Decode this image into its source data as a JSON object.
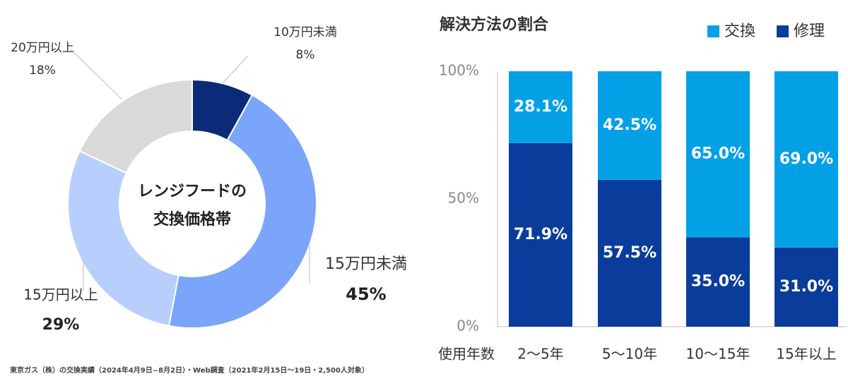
{
  "colors": {
    "lt10": "#0b2a78",
    "lt15": "#7aa5fb",
    "ge15": "#b8cffd",
    "ge20": "#d9d9d9",
    "exchange": "#04a0e6",
    "repair": "#0a3d9b",
    "text_dark": "#333333"
  },
  "chart_data": [
    {
      "type": "pie",
      "variant": "donut",
      "center_label": [
        "レンジフードの",
        "交換価格帯"
      ],
      "slices": [
        {
          "key": "lt10",
          "label": "10万円未満",
          "value_text": "8%",
          "value": 8
        },
        {
          "key": "lt15",
          "label": "15万円未満",
          "value_text": "45%",
          "value": 45
        },
        {
          "key": "ge15",
          "label": "15万円以上",
          "value_text": "29%",
          "value": 29
        },
        {
          "key": "ge20",
          "label": "20万円以上",
          "value_text": "18%",
          "value": 18
        }
      ]
    },
    {
      "type": "bar",
      "stacked": "percent",
      "title": "解決方法の割合",
      "xlabel": "使用年数",
      "categories": [
        "2〜5年",
        "5〜10年",
        "10〜15年",
        "15年以上"
      ],
      "y_ticks": [
        "0%",
        "50%",
        "100%"
      ],
      "ylim": [
        0,
        100
      ],
      "series": [
        {
          "name": "修理",
          "key": "repair",
          "values": [
            71.9,
            57.5,
            35.0,
            31.0
          ],
          "labels": [
            "71.9%",
            "57.5%",
            "35.0%",
            "31.0%"
          ]
        },
        {
          "name": "交換",
          "key": "exchange",
          "values": [
            28.1,
            42.5,
            65.0,
            69.0
          ],
          "labels": [
            "28.1%",
            "42.5%",
            "65.0%",
            "69.0%"
          ]
        }
      ],
      "legend": [
        "交換",
        "修理"
      ]
    }
  ],
  "footnote": "東京ガス（株）の交換実績（2024年4月9日~8月2日）・Web調査（2021年2月15日〜19日・2,500人対象）"
}
